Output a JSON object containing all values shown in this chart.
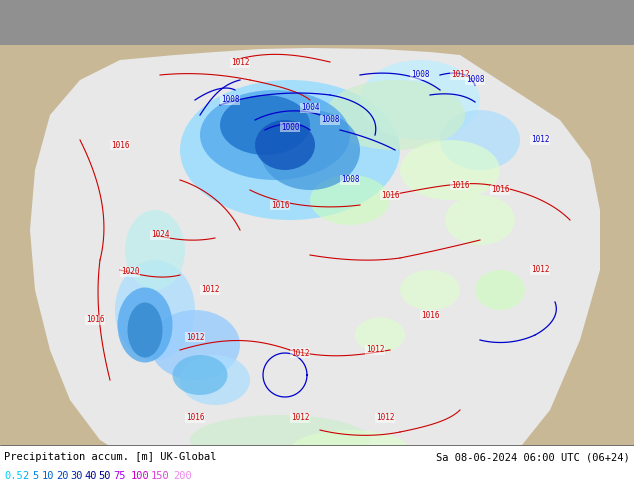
{
  "title_left": "Precipitation accum. [m] UK-Global",
  "title_right": "Sa 08-06-2024 06:00 UTC (06+24)",
  "legend_values": [
    "0.5",
    "2",
    "5",
    "10",
    "20",
    "30",
    "40",
    "50",
    "75",
    "100",
    "150",
    "200"
  ],
  "legend_text_colors": [
    "#00ccff",
    "#00aaee",
    "#0088dd",
    "#0066cc",
    "#0044bb",
    "#0022aa",
    "#000099",
    "#000088",
    "#aa00ee",
    "#cc00cc",
    "#dd44dd",
    "#ee88ee"
  ],
  "bg_color": "#909090",
  "land_color": "#c8b896",
  "domain_color": "#e8e8e8",
  "red": "#cc0000",
  "blue_dark": "#0000cc",
  "fig_width": 6.34,
  "fig_height": 4.9,
  "dpi": 100
}
